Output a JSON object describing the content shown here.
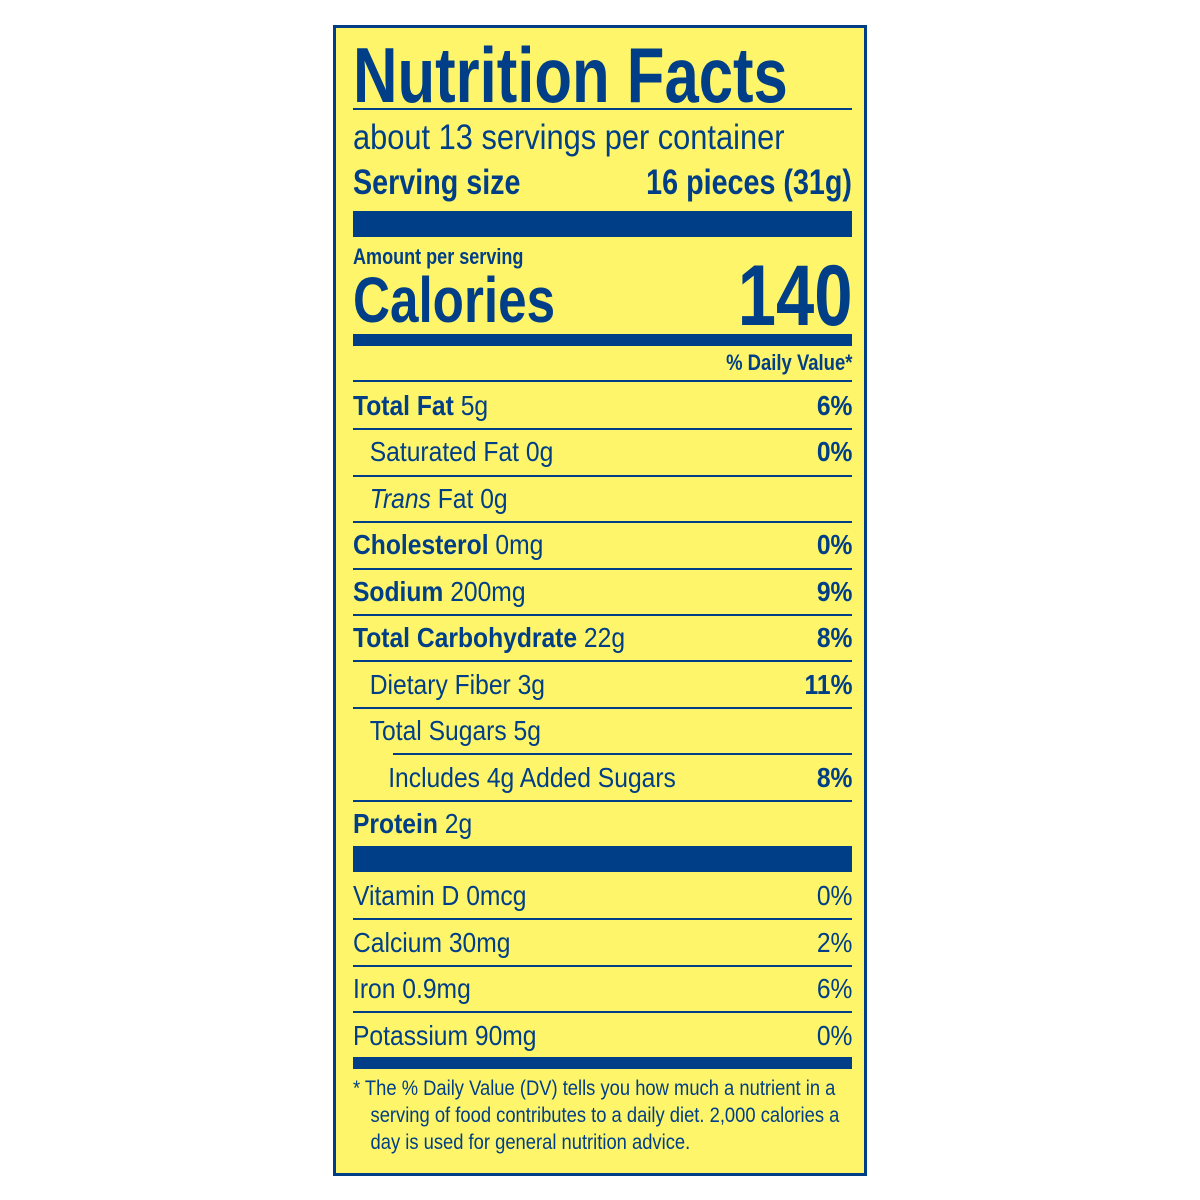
{
  "title": "Nutrition Facts",
  "servings_per_container": "about 13 servings per container",
  "serving_size": {
    "label": "Serving size",
    "value": "16 pieces (31g)"
  },
  "amount_per_serving": "Amount per serving",
  "calories": {
    "label": "Calories",
    "value": "140"
  },
  "daily_value_header": "% Daily Value*",
  "nutrients": [
    {
      "name": "Total Fat",
      "amount": "5g",
      "dv": "6%"
    },
    {
      "name": "Saturated Fat",
      "amount": "0g",
      "dv": "0%"
    },
    {
      "name": "Trans",
      "name_suffix": "Fat",
      "amount": "0g",
      "dv": ""
    },
    {
      "name": "Cholesterol",
      "amount": "0mg",
      "dv": "0%"
    },
    {
      "name": "Sodium",
      "amount": "200mg",
      "dv": "9%"
    },
    {
      "name": "Total Carbohydrate",
      "amount": "22g",
      "dv": "8%"
    },
    {
      "name": "Dietary Fiber",
      "amount": "3g",
      "dv": "11%"
    },
    {
      "name": "Total Sugars",
      "amount": "5g",
      "dv": ""
    },
    {
      "name": "Includes 4g Added Sugars",
      "amount": "",
      "dv": "8%"
    },
    {
      "name": "Protein",
      "amount": "2g",
      "dv": ""
    }
  ],
  "vitamins": [
    {
      "name": "Vitamin D",
      "amount": "0mcg",
      "dv": "0%"
    },
    {
      "name": "Calcium",
      "amount": "30mg",
      "dv": "2%"
    },
    {
      "name": "Iron",
      "amount": "0.9mg",
      "dv": "6%"
    },
    {
      "name": "Potassium",
      "amount": "90mg",
      "dv": "0%"
    }
  ],
  "footnote": "* The % Daily Value (DV) tells you how much a nutrient in a serving of food contributes to a daily diet. 2,000 calories a day is used for general nutrition advice.",
  "colors": {
    "background": "#fef56a",
    "ink": "#003f87"
  }
}
